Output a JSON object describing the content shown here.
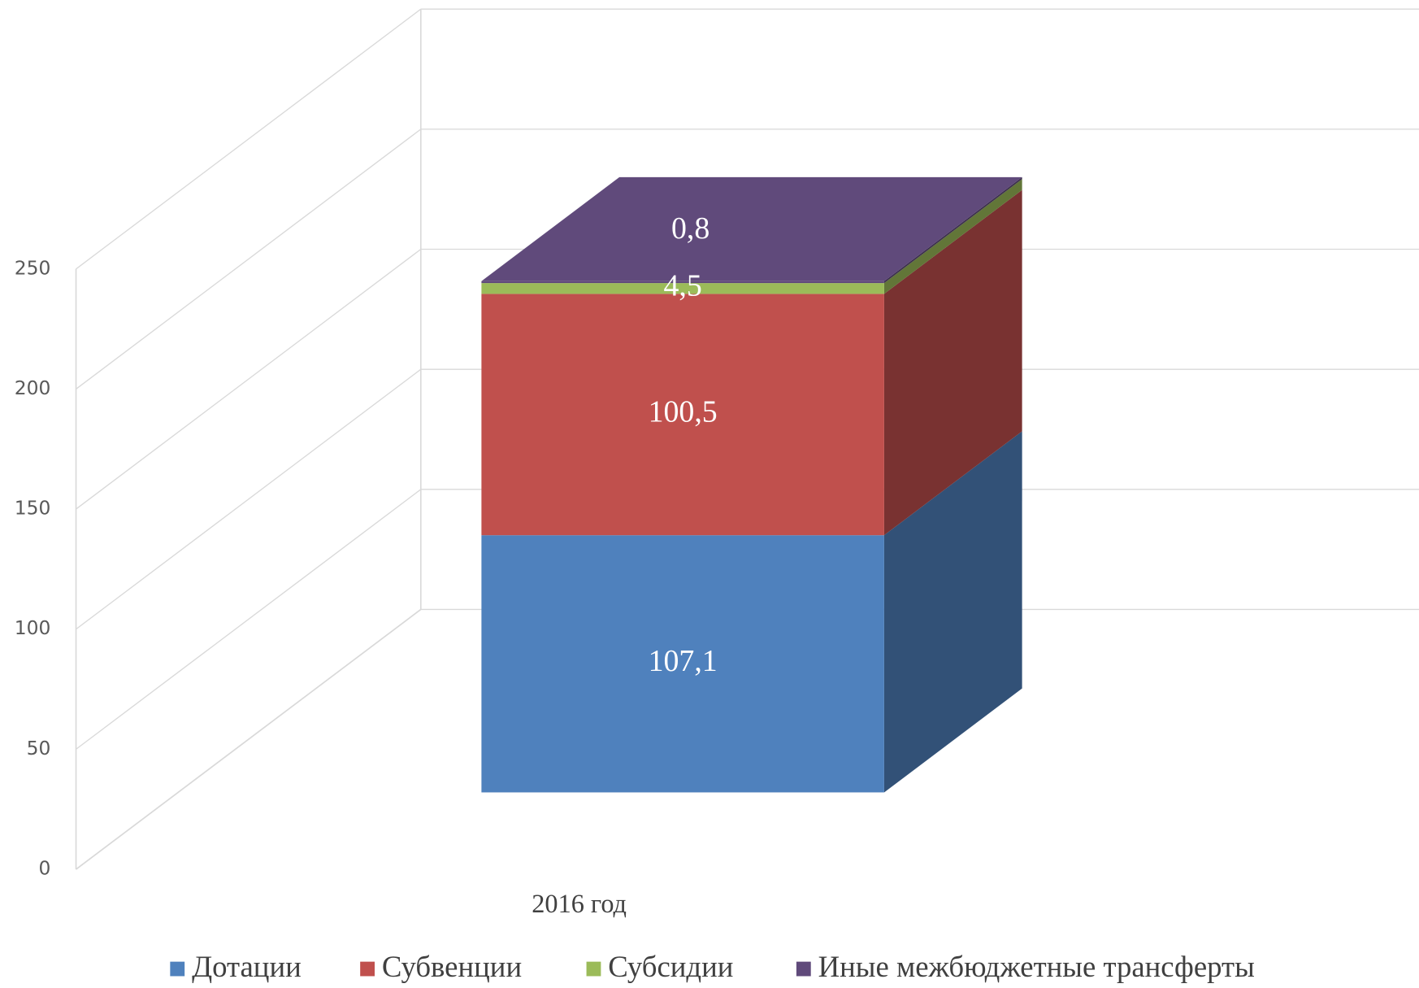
{
  "chart_data": {
    "type": "bar",
    "stacked": true,
    "three_d": true,
    "categories": [
      "2016 год"
    ],
    "series": [
      {
        "name": "Дотации",
        "color": "#4f81bd",
        "values": [
          107.1
        ],
        "value_labels": [
          "107,1"
        ]
      },
      {
        "name": "Субвенции",
        "color": "#c0504d",
        "values": [
          100.5
        ],
        "value_labels": [
          "100,5"
        ]
      },
      {
        "name": "Субсидии",
        "color": "#9bbb59",
        "values": [
          4.5
        ],
        "value_labels": [
          "4,5"
        ]
      },
      {
        "name": "Иные межбюджетные трансферты",
        "color": "#604a7b",
        "values": [
          0.8
        ],
        "value_labels": [
          "0,8"
        ]
      }
    ],
    "ylim": [
      0,
      250
    ],
    "yticks": [
      0,
      50,
      100,
      150,
      200,
      250
    ],
    "grid": true,
    "legend": "bottom"
  }
}
